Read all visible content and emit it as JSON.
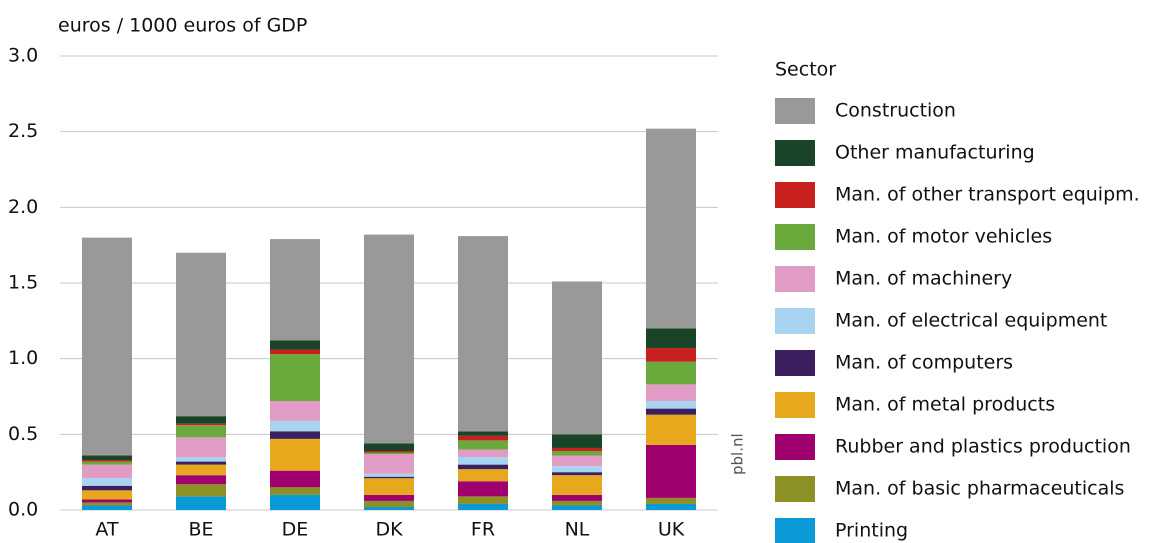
{
  "chart_data": {
    "type": "stacked_bar",
    "title": "euros / 1000 euros of GDP",
    "legend_title": "Sector",
    "source": "pbl.nl",
    "categories": [
      "AT",
      "BE",
      "DE",
      "DK",
      "FR",
      "NL",
      "UK"
    ],
    "series": [
      {
        "name": "Printing",
        "color": "#0a9ad8",
        "values": [
          0.03,
          0.09,
          0.1,
          0.02,
          0.04,
          0.03,
          0.04
        ]
      },
      {
        "name": "Man. of basic pharmaceuticals",
        "color": "#8c9025",
        "values": [
          0.02,
          0.08,
          0.05,
          0.04,
          0.05,
          0.03,
          0.04
        ]
      },
      {
        "name": "Rubber and plastics production",
        "color": "#a0006e",
        "values": [
          0.02,
          0.06,
          0.11,
          0.04,
          0.1,
          0.04,
          0.35
        ]
      },
      {
        "name": "Man. of metal products",
        "color": "#e8a81e",
        "values": [
          0.06,
          0.07,
          0.21,
          0.11,
          0.08,
          0.13,
          0.2
        ]
      },
      {
        "name": "Man. of computers",
        "color": "#3c1f5e",
        "values": [
          0.03,
          0.02,
          0.05,
          0.01,
          0.03,
          0.02,
          0.04
        ]
      },
      {
        "name": "Man. of electrical equipment",
        "color": "#a8d4f2",
        "values": [
          0.05,
          0.03,
          0.07,
          0.02,
          0.05,
          0.04,
          0.05
        ]
      },
      {
        "name": "Man. of machinery",
        "color": "#e09cc4",
        "values": [
          0.09,
          0.13,
          0.13,
          0.13,
          0.05,
          0.07,
          0.11
        ]
      },
      {
        "name": "Man. of motor vehicles",
        "color": "#6aaa3c",
        "values": [
          0.02,
          0.08,
          0.31,
          0.01,
          0.06,
          0.03,
          0.15
        ]
      },
      {
        "name": "Man. of other transport equipm.",
        "color": "#c8201e",
        "values": [
          0.01,
          0.01,
          0.03,
          0.01,
          0.03,
          0.02,
          0.09
        ]
      },
      {
        "name": "Other manufacturing",
        "color": "#1a4427",
        "values": [
          0.03,
          0.05,
          0.06,
          0.05,
          0.03,
          0.09,
          0.13
        ]
      },
      {
        "name": "Construction",
        "color": "#999999",
        "values": [
          1.44,
          1.08,
          0.67,
          1.38,
          1.29,
          1.01,
          1.32
        ]
      }
    ],
    "ylim": [
      0,
      3.0
    ],
    "yticks": [
      {
        "value": 0,
        "label": "0.0"
      },
      0.5,
      {
        "value": 1,
        "label": "1.0"
      },
      1.5,
      {
        "value": 2,
        "label": "2.0"
      },
      2.5,
      {
        "value": 3,
        "label": "3.0"
      }
    ],
    "grid": true
  }
}
